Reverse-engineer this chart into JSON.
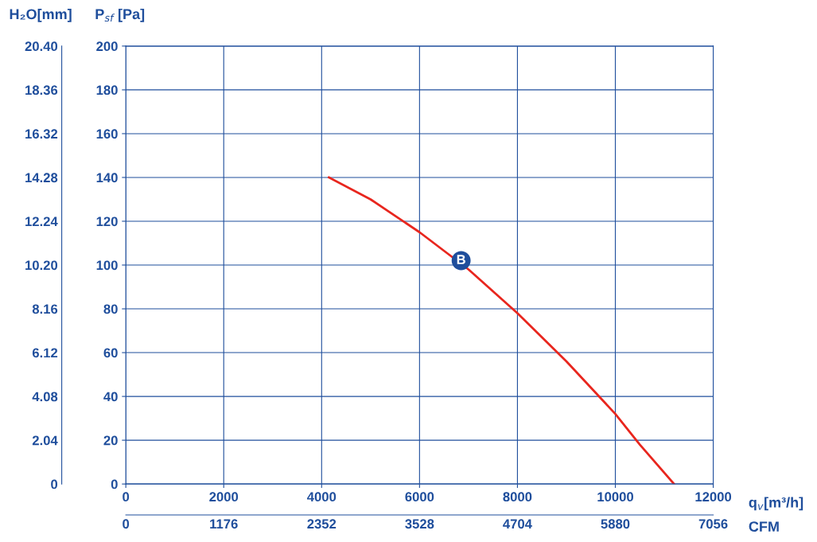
{
  "chart_data": {
    "type": "line",
    "xlabel": "q$_{v}$[m³/h]",
    "ylabel": "P$_{sf}$ [Pa]",
    "y2label": "H₂O[mm]",
    "x2label": "CFM",
    "x": [
      4150,
      5000,
      6000,
      7000,
      8000,
      9000,
      10000,
      10500,
      11200
    ],
    "series": [
      {
        "color": "#e8261e",
        "values": [
          140,
          130,
          115,
          98,
          78,
          56,
          32,
          18,
          0
        ]
      }
    ],
    "xlim": [
      0,
      12000
    ],
    "xticks": [
      0,
      2000,
      4000,
      6000,
      8000,
      10000,
      12000
    ],
    "ylim": [
      0,
      200
    ],
    "yticks": [
      0,
      20,
      40,
      60,
      80,
      100,
      120,
      140,
      160,
      180,
      200
    ],
    "y2lim": [
      0,
      20.4
    ],
    "y2ticks": [
      0,
      2.04,
      4.08,
      6.12,
      8.16,
      {
        "value": 10.2,
        "label": "10.20"
      },
      12.24,
      14.28,
      16.32,
      18.36,
      {
        "value": 20.4,
        "label": "20.40"
      }
    ],
    "x2lim": [
      0,
      7056
    ],
    "x2ticks": [
      0,
      1176,
      2352,
      3528,
      4704,
      5880,
      7056
    ],
    "annotations": [
      {
        "text": "B",
        "x": 6850,
        "y": 102
      }
    ],
    "grid": true,
    "legend": false,
    "marker": "none",
    "line_style": "solid"
  }
}
